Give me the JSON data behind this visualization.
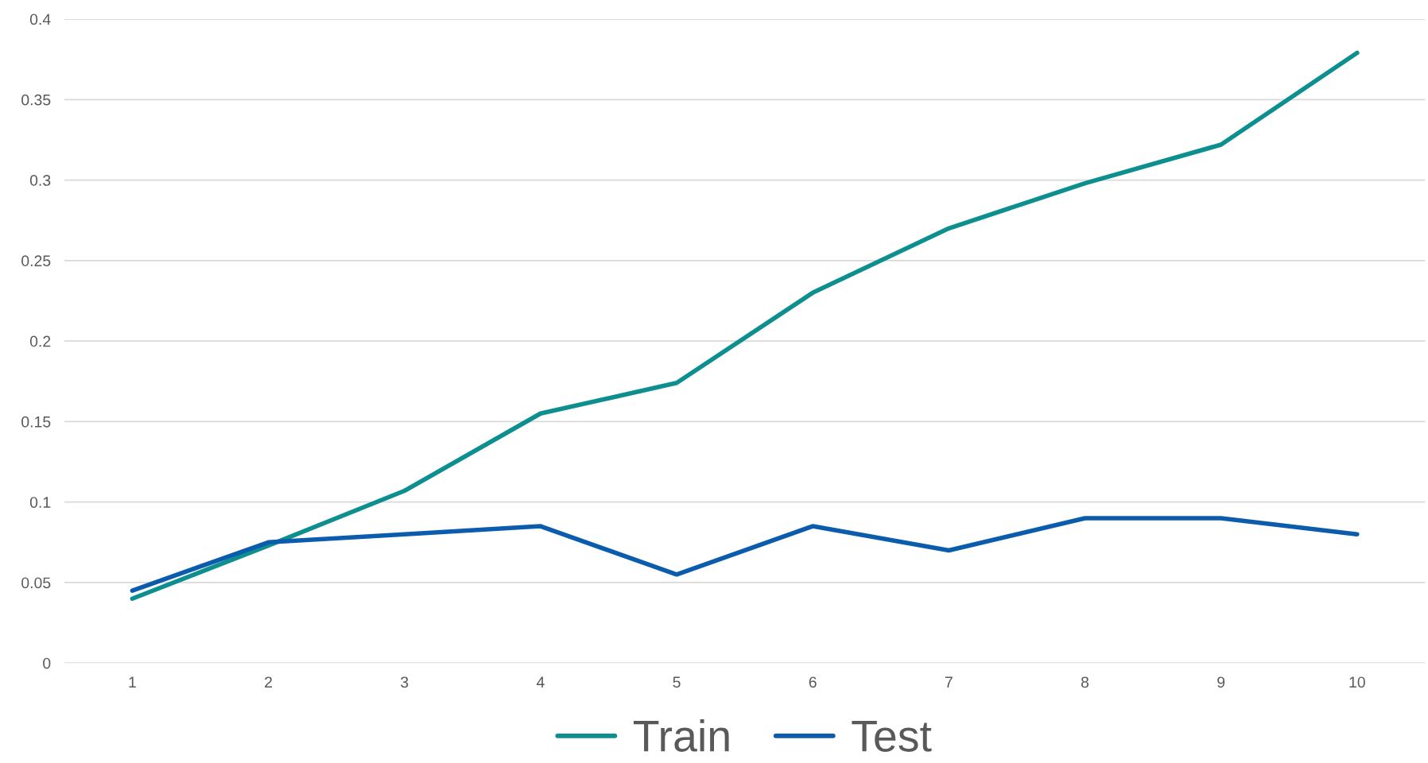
{
  "chart_data": {
    "type": "line",
    "categories": [
      "1",
      "2",
      "3",
      "4",
      "5",
      "6",
      "7",
      "8",
      "9",
      "10"
    ],
    "series": [
      {
        "name": "Train",
        "color": "#0e8f8f",
        "values": [
          0.04,
          0.073,
          0.107,
          0.155,
          0.174,
          0.23,
          0.27,
          0.298,
          0.322,
          0.379
        ]
      },
      {
        "name": "Test",
        "color": "#0b5cad",
        "values": [
          0.045,
          0.075,
          0.08,
          0.085,
          0.055,
          0.085,
          0.07,
          0.09,
          0.09,
          0.08
        ]
      }
    ],
    "ylim": [
      0,
      0.4
    ],
    "yticks": [
      0,
      0.05,
      0.1,
      0.15,
      0.2,
      0.25,
      0.3,
      0.35,
      0.4
    ],
    "grid": "y",
    "legend": "bottom",
    "marker": "none",
    "line_style": "solid"
  }
}
